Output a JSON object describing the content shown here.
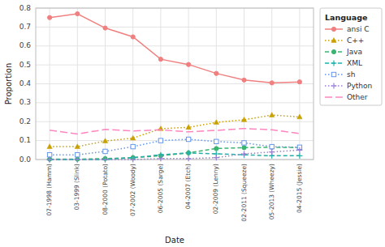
{
  "chart_data": {
    "type": "line",
    "xlabel": "Date",
    "ylabel": "Proportion",
    "legend_title": "Language",
    "categories": [
      "07-1998 (Hamm)",
      "03-1999 (Slink)",
      "08-2000 (Potato)",
      "07-2002 (Woody)",
      "06-2005 (Sarge)",
      "04-2007 (Etch)",
      "02-2009 (Lenny)",
      "02-2011 (Squeeze)",
      "05-2013 (Wheezy)",
      "04-2015 (Jessie)"
    ],
    "series": [
      {
        "name": "ansi C",
        "color": "#F08080",
        "marker": "circle",
        "line_style": "solid",
        "values": [
          0.75,
          0.77,
          0.695,
          0.648,
          0.53,
          0.502,
          0.455,
          0.42,
          0.405,
          0.41
        ]
      },
      {
        "name": "C++",
        "color": "#C8A000",
        "marker": "triangle",
        "line_style": "dotted",
        "values": [
          0.068,
          0.068,
          0.098,
          0.113,
          0.163,
          0.17,
          0.196,
          0.21,
          0.235,
          0.225
        ]
      },
      {
        "name": "Java",
        "color": "#3CB371",
        "marker": "circle",
        "line_style": "dashed",
        "values": [
          0.002,
          0.002,
          0.005,
          0.01,
          0.02,
          0.035,
          0.058,
          0.063,
          0.065,
          0.063
        ]
      },
      {
        "name": "XML",
        "color": "#20B2AA",
        "marker": "plus",
        "line_style": "dashed",
        "values": [
          0.0,
          0.0,
          0.0,
          0.01,
          0.025,
          0.035,
          0.03,
          0.025,
          0.02,
          0.02
        ]
      },
      {
        "name": "sh",
        "color": "#6495ED",
        "marker": "square-open",
        "line_style": "dotted",
        "values": [
          0.025,
          0.025,
          0.043,
          0.068,
          0.1,
          0.107,
          0.095,
          0.088,
          0.068,
          0.065
        ]
      },
      {
        "name": "Python",
        "color": "#9B7FD4",
        "marker": "plus",
        "line_style": "dotted",
        "values": [
          0.0,
          0.0,
          0.0,
          0.0,
          0.005,
          0.005,
          0.01,
          0.03,
          0.04,
          0.05
        ]
      },
      {
        "name": "Other",
        "color": "#FF85C0",
        "marker": "none",
        "line_style": "long-dashed",
        "values": [
          0.155,
          0.135,
          0.159,
          0.151,
          0.157,
          0.146,
          0.154,
          0.164,
          0.157,
          0.137
        ]
      }
    ],
    "ylim": [
      0.0,
      0.8
    ],
    "yticks": [
      {
        "value": 0,
        "label": "0.0"
      },
      0.1,
      0.2,
      0.3,
      0.4,
      0.5,
      0.6,
      0.7,
      0.8
    ],
    "grid": true,
    "legend": "right"
  }
}
